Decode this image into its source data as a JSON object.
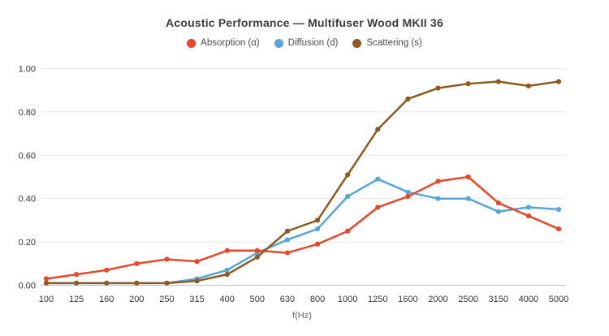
{
  "title": "Acoustic Performance — Multifuser Wood MKII 36",
  "legend": [
    {
      "label": "Absorption (α)",
      "color": "#e8472a"
    },
    {
      "label": "Diffusion (d)",
      "color": "#56a7d8"
    },
    {
      "label": "Scattering (s)",
      "color": "#8d5b22"
    }
  ],
  "axes": {
    "x_title": "f(Hz)",
    "y_tick_labels": [
      "0.00",
      "0.20",
      "0.40",
      "0.60",
      "0.80",
      "1.00"
    ]
  },
  "colors": {
    "absorption": "#e8472a",
    "diffusion": "#56a7d8",
    "scattering": "#8d5b22",
    "gridline": "#e8e8e8",
    "zero_line": "#c2c2c2",
    "tick_text": "#333333",
    "axis_title_text": "#666666",
    "title_text": "#3c3c3c"
  },
  "chart_data": {
    "type": "line",
    "title": "Acoustic Performance — Multifuser Wood MKII 36",
    "xlabel": "f(Hz)",
    "ylabel": "",
    "ylim": [
      0,
      1.0
    ],
    "yticks": [
      0,
      0.2,
      0.4,
      0.6,
      0.8,
      1.0
    ],
    "ytick_labels": [
      "0.00",
      "0.20",
      "0.40",
      "0.60",
      "0.80",
      "1.00"
    ],
    "grid": "horizontal",
    "legend_position": "top",
    "categories": [
      "100",
      "125",
      "160",
      "200",
      "250",
      "315",
      "400",
      "500",
      "630",
      "800",
      "1000",
      "1250",
      "1600",
      "2000",
      "2500",
      "3150",
      "4000",
      "5000"
    ],
    "series": [
      {
        "name": "Absorption (α)",
        "color": "#e8472a",
        "values": [
          0.03,
          0.05,
          0.07,
          0.1,
          0.12,
          0.11,
          0.16,
          0.16,
          0.15,
          0.19,
          0.25,
          0.36,
          0.41,
          0.48,
          0.5,
          0.38,
          0.32,
          0.26
        ]
      },
      {
        "name": "Diffusion (d)",
        "color": "#56a7d8",
        "values": [
          0.01,
          0.01,
          0.01,
          0.01,
          0.01,
          0.03,
          0.07,
          0.15,
          0.21,
          0.26,
          0.41,
          0.49,
          0.43,
          0.4,
          0.4,
          0.34,
          0.36,
          0.35
        ]
      },
      {
        "name": "Scattering (s)",
        "color": "#8d5b22",
        "values": [
          0.01,
          0.01,
          0.01,
          0.01,
          0.01,
          0.02,
          0.05,
          0.13,
          0.25,
          0.3,
          0.51,
          0.72,
          0.86,
          0.91,
          0.93,
          0.94,
          0.92,
          0.94
        ]
      }
    ]
  }
}
